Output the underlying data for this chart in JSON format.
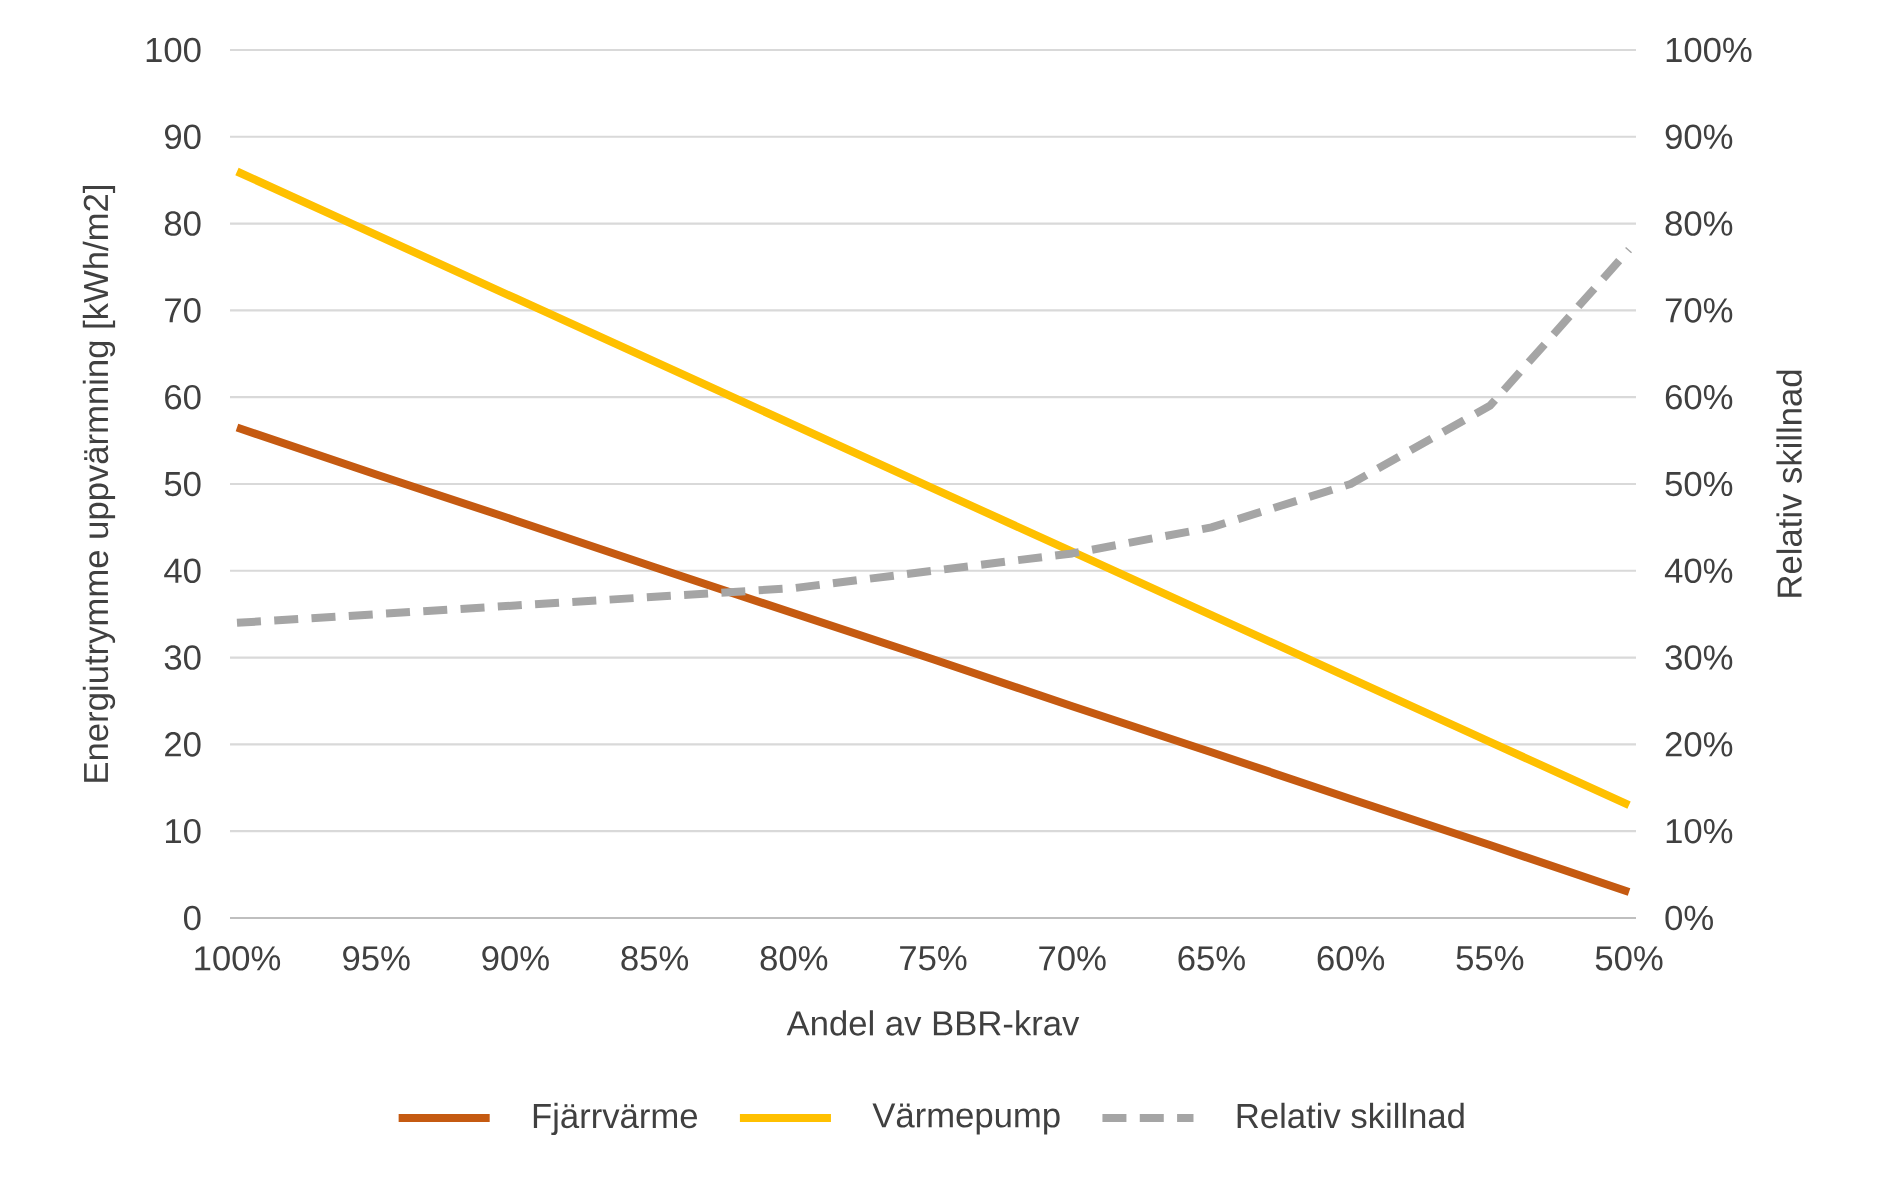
{
  "chart_data": {
    "type": "line",
    "xlabel": "Andel av BBR-krav",
    "ylabel": "Energiutrymme uppvärmning [kWh/m2]",
    "y2label": "Relativ skillnad",
    "categories": [
      "100%",
      "95%",
      "90%",
      "85%",
      "80%",
      "75%",
      "70%",
      "65%",
      "60%",
      "55%",
      "50%"
    ],
    "series": [
      {
        "name": "Fjärrvärme",
        "color": "#c55a11",
        "values": [
          56.5,
          51.1,
          45.8,
          40.4,
          35.1,
          29.8,
          24.4,
          19.1,
          13.7,
          8.4,
          3
        ]
      },
      {
        "name": "Värmepump",
        "color": "#ffc000",
        "values": [
          86,
          78.7,
          71.4,
          64.1,
          56.8,
          49.5,
          42.2,
          34.9,
          27.6,
          20.3,
          13
        ]
      },
      {
        "name": "Relativ skillnad",
        "color": "#a5a5a5",
        "axis": "y2",
        "line_style": "dashed",
        "values": [
          34,
          35,
          36,
          37,
          38,
          40,
          42,
          45,
          50,
          59,
          77
        ]
      }
    ],
    "ylim": [
      0,
      100
    ],
    "yticks": [
      0,
      10,
      20,
      30,
      40,
      50,
      60,
      70,
      80,
      90,
      100
    ],
    "y2lim": [
      0,
      100
    ],
    "y2ticks": [
      {
        "value": 0,
        "label": "0%"
      },
      {
        "value": 10,
        "label": "10%"
      },
      {
        "value": 20,
        "label": "20%"
      },
      {
        "value": 30,
        "label": "30%"
      },
      {
        "value": 40,
        "label": "40%"
      },
      {
        "value": 50,
        "label": "50%"
      },
      {
        "value": 60,
        "label": "60%"
      },
      {
        "value": 70,
        "label": "70%"
      },
      {
        "value": 80,
        "label": "80%"
      },
      {
        "value": 90,
        "label": "90%"
      },
      {
        "value": 100,
        "label": "100%"
      }
    ],
    "grid": "y",
    "legend": "bottom",
    "marker": "none",
    "line_style": "solid"
  }
}
